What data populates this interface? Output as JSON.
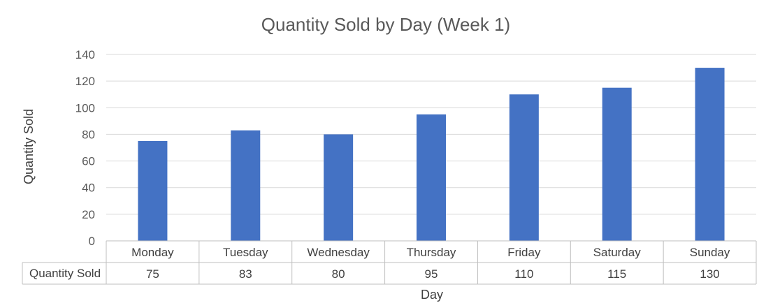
{
  "chart_data": {
    "type": "bar",
    "title": "Quantity Sold by Day (Week 1)",
    "xlabel": "Day",
    "ylabel": "Quantity Sold",
    "categories": [
      "Monday",
      "Tuesday",
      "Wednesday",
      "Thursday",
      "Friday",
      "Saturday",
      "Sunday"
    ],
    "series": [
      {
        "name": "Quantity Sold",
        "values": [
          75,
          83,
          80,
          95,
          110,
          115,
          130
        ]
      }
    ],
    "ylim": [
      0,
      140
    ],
    "yticks": [
      0,
      20,
      40,
      60,
      80,
      100,
      120,
      140
    ],
    "grid": true,
    "legend": "data-table",
    "data_table": true,
    "colors": {
      "bar": "#4472C4"
    }
  }
}
